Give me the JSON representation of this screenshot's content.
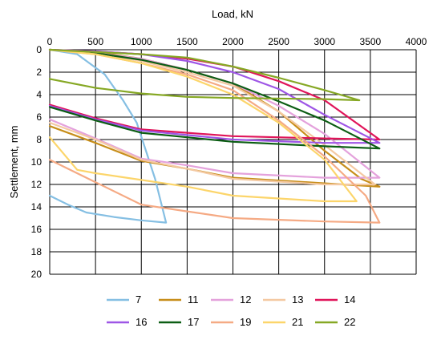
{
  "chart_data": {
    "type": "line",
    "title": "",
    "xlabel": "Load, kN",
    "ylabel": "Settlement, mm",
    "xlim": [
      0,
      4000
    ],
    "ylim": [
      0,
      20
    ],
    "y_inverted": true,
    "x_axis_position": "top",
    "xticks": [
      0,
      500,
      1000,
      1500,
      2000,
      2500,
      3000,
      3500,
      4000
    ],
    "yticks": [
      0,
      2,
      4,
      6,
      8,
      10,
      12,
      14,
      16,
      18,
      20
    ],
    "grid": true,
    "legend_position": "bottom",
    "series": [
      {
        "name": "7",
        "color": "#85bfe3",
        "points": [
          [
            0,
            0
          ],
          [
            300,
            0.4
          ],
          [
            600,
            2.2
          ],
          [
            800,
            4.5
          ],
          [
            950,
            6.5
          ],
          [
            1050,
            9.0
          ],
          [
            1150,
            11.5
          ],
          [
            1270,
            15.4
          ],
          [
            1000,
            15.2
          ],
          [
            700,
            14.9
          ],
          [
            400,
            14.5
          ],
          [
            200,
            13.8
          ],
          [
            0,
            13.0
          ]
        ]
      },
      {
        "name": "11",
        "color": "#c78e1a",
        "points": [
          [
            0,
            0
          ],
          [
            500,
            0.2
          ],
          [
            1000,
            0.8
          ],
          [
            1500,
            1.8
          ],
          [
            2000,
            3.0
          ],
          [
            2500,
            5.5
          ],
          [
            3000,
            9.0
          ],
          [
            3400,
            11.5
          ],
          [
            3600,
            12.2
          ],
          [
            3000,
            11.9
          ],
          [
            2000,
            11.4
          ],
          [
            1500,
            10.6
          ],
          [
            1000,
            9.9
          ],
          [
            500,
            8.3
          ],
          [
            0,
            6.8
          ]
        ]
      },
      {
        "name": "12",
        "color": "#e4a2dc",
        "points": [
          [
            0,
            0
          ],
          [
            500,
            0.3
          ],
          [
            1000,
            0.8
          ],
          [
            1500,
            1.8
          ],
          [
            2000,
            3.0
          ],
          [
            2500,
            5.0
          ],
          [
            3000,
            7.5
          ],
          [
            3600,
            11.4
          ],
          [
            3000,
            11.4
          ],
          [
            2000,
            11.0
          ],
          [
            1500,
            10.3
          ],
          [
            1000,
            9.7
          ],
          [
            500,
            7.9
          ],
          [
            0,
            6.2
          ]
        ]
      },
      {
        "name": "13",
        "color": "#f4c9a2",
        "points": [
          [
            0,
            0
          ],
          [
            500,
            0.3
          ],
          [
            1000,
            1.0
          ],
          [
            1500,
            2.0
          ],
          [
            2000,
            3.2
          ],
          [
            2500,
            5.5
          ],
          [
            3000,
            8.5
          ],
          [
            3550,
            12.0
          ],
          [
            3000,
            12.0
          ],
          [
            2000,
            11.5
          ],
          [
            1500,
            10.6
          ],
          [
            1000,
            9.8
          ],
          [
            500,
            8.0
          ],
          [
            0,
            6.5
          ]
        ]
      },
      {
        "name": "14",
        "color": "#e0155a",
        "points": [
          [
            0,
            0
          ],
          [
            500,
            0.15
          ],
          [
            1000,
            0.4
          ],
          [
            1500,
            0.8
          ],
          [
            2000,
            1.5
          ],
          [
            2500,
            2.8
          ],
          [
            3000,
            4.5
          ],
          [
            3600,
            8.0
          ],
          [
            3000,
            7.9
          ],
          [
            2000,
            7.7
          ],
          [
            1500,
            7.4
          ],
          [
            1000,
            7.1
          ],
          [
            500,
            6.1
          ],
          [
            0,
            4.9
          ]
        ]
      },
      {
        "name": "16",
        "color": "#9e56e6",
        "points": [
          [
            0,
            0
          ],
          [
            500,
            0.15
          ],
          [
            1000,
            0.4
          ],
          [
            1500,
            1.0
          ],
          [
            2000,
            2.0
          ],
          [
            2500,
            3.5
          ],
          [
            3000,
            5.8
          ],
          [
            3600,
            8.3
          ],
          [
            3000,
            8.3
          ],
          [
            2000,
            8.0
          ],
          [
            1500,
            7.6
          ],
          [
            1000,
            7.2
          ],
          [
            500,
            6.2
          ],
          [
            0,
            5.0
          ]
        ]
      },
      {
        "name": "17",
        "color": "#0c5e14",
        "points": [
          [
            0,
            0
          ],
          [
            500,
            0.3
          ],
          [
            1000,
            0.9
          ],
          [
            1500,
            1.8
          ],
          [
            2000,
            3.0
          ],
          [
            2500,
            4.6
          ],
          [
            3000,
            6.3
          ],
          [
            3600,
            8.8
          ],
          [
            3000,
            8.6
          ],
          [
            2000,
            8.2
          ],
          [
            1500,
            7.8
          ],
          [
            1000,
            7.4
          ],
          [
            500,
            6.3
          ],
          [
            0,
            5.1
          ]
        ]
      },
      {
        "name": "19",
        "color": "#f5aa84",
        "points": [
          [
            0,
            0
          ],
          [
            500,
            0.4
          ],
          [
            1000,
            1.2
          ],
          [
            1500,
            2.2
          ],
          [
            2000,
            3.6
          ],
          [
            2500,
            6.3
          ],
          [
            3000,
            9.5
          ],
          [
            3450,
            13.0
          ],
          [
            3600,
            15.4
          ],
          [
            3000,
            15.3
          ],
          [
            2000,
            15.0
          ],
          [
            1500,
            14.4
          ],
          [
            1000,
            13.8
          ],
          [
            500,
            11.8
          ],
          [
            0,
            9.8
          ]
        ]
      },
      {
        "name": "21",
        "color": "#fcd56a",
        "points": [
          [
            0,
            0
          ],
          [
            500,
            0.4
          ],
          [
            1000,
            1.2
          ],
          [
            1500,
            2.4
          ],
          [
            2000,
            4.0
          ],
          [
            2500,
            6.5
          ],
          [
            3000,
            9.8
          ],
          [
            3350,
            13.5
          ],
          [
            3000,
            13.5
          ],
          [
            2000,
            13.0
          ],
          [
            1500,
            12.2
          ],
          [
            1000,
            11.6
          ],
          [
            500,
            11.0
          ],
          [
            300,
            10.7
          ],
          [
            0,
            7.8
          ]
        ]
      },
      {
        "name": "22",
        "color": "#86a824",
        "points": [
          [
            0,
            0
          ],
          [
            500,
            0.2
          ],
          [
            1000,
            0.4
          ],
          [
            1500,
            0.7
          ],
          [
            2000,
            1.5
          ],
          [
            2500,
            2.5
          ],
          [
            3000,
            3.6
          ],
          [
            3380,
            4.5
          ],
          [
            3000,
            4.4
          ],
          [
            2000,
            4.3
          ],
          [
            1500,
            4.2
          ],
          [
            1000,
            3.9
          ],
          [
            500,
            3.4
          ],
          [
            0,
            2.6
          ]
        ]
      }
    ]
  }
}
